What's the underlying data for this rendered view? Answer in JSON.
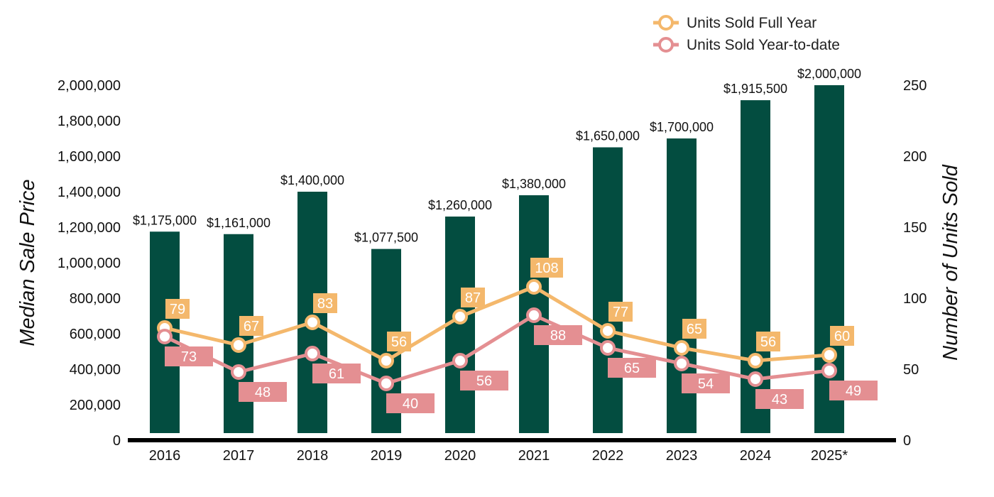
{
  "chart_data": {
    "type": "bar",
    "categories": [
      "2016",
      "2017",
      "2018",
      "2019",
      "2020",
      "2021",
      "2022",
      "2023",
      "2024",
      "2025*"
    ],
    "bar_series": {
      "values": [
        1175000,
        1161000,
        1400000,
        1077500,
        1260000,
        1380000,
        1650000,
        1700000,
        1915500,
        2000000
      ],
      "labels": [
        "$1,175,000",
        "$1,161,000",
        "$1,400,000",
        "$1,077,500",
        "$1,260,000",
        "$1,380,000",
        "$1,650,000",
        "$1,700,000",
        "$1,915,500",
        "$2,000,000"
      ],
      "color": "#034d40"
    },
    "line_series": [
      {
        "name": "Units Sold Full Year",
        "values": [
          79,
          67,
          83,
          56,
          87,
          108,
          77,
          65,
          56,
          60
        ],
        "color": "#f4b86c"
      },
      {
        "name": "Units Sold Year-to-date",
        "values": [
          73,
          48,
          61,
          40,
          56,
          88,
          65,
          54,
          43,
          49
        ],
        "color": "#e48f92"
      }
    ],
    "ylabel": "Median Sale Price",
    "y2label": "Number of Units Sold",
    "ylim": [
      0,
      2000000
    ],
    "y2lim": [
      0,
      250
    ],
    "yticks": [
      "0",
      "200,000",
      "400,000",
      "600,000",
      "800,000",
      "1,000,000",
      "1,200,000",
      "1,400,000",
      "1,600,000",
      "1,800,000",
      "2,000,000"
    ],
    "y2ticks": [
      "0",
      "50",
      "100",
      "150",
      "200",
      "250"
    ],
    "legend_position": "top-right",
    "grid": false
  }
}
